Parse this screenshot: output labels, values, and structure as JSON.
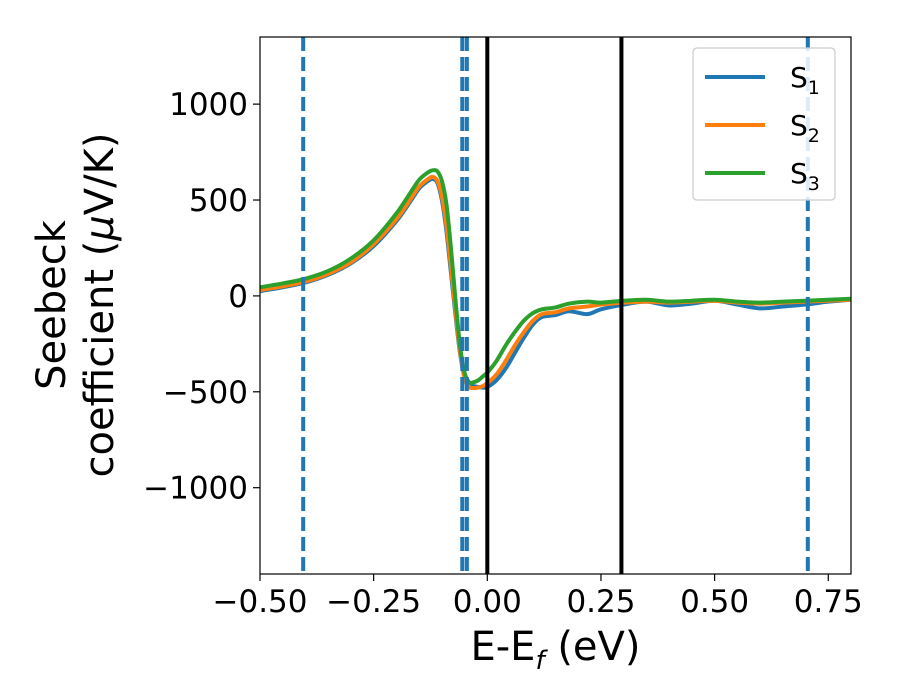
{
  "chart_data": {
    "type": "line",
    "title": "",
    "xlabel": {
      "main": "E-E",
      "sub": "f",
      "unit": " (eV)"
    },
    "ylabel": {
      "line1": "Seebeck",
      "line2_prefix": "coefficient  (",
      "line2_mu": "μ",
      "line2_suffix": "V/K)"
    },
    "xlim": [
      -0.5,
      0.8
    ],
    "ylim": [
      -1450,
      1350
    ],
    "xticks": [
      -0.5,
      -0.25,
      0.0,
      0.25,
      0.5,
      0.75
    ],
    "xtick_labels": [
      "−0.50",
      "−0.25",
      "0.00",
      "0.25",
      "0.50",
      "0.75"
    ],
    "yticks": [
      -1000,
      -500,
      0,
      500,
      1000
    ],
    "ytick_labels": [
      "−1000",
      "−500",
      "0",
      "500",
      "1000"
    ],
    "grid": false,
    "legend_position": "top-right",
    "vlines_dashed": {
      "color": "#1f77b4",
      "x": [
        -0.405,
        -0.055,
        -0.045,
        0.705
      ]
    },
    "vlines_solid": {
      "color": "#000000",
      "x": [
        0.0,
        0.295
      ]
    },
    "series": [
      {
        "name": "S",
        "sub": "1",
        "color": "#1f77b4",
        "x": [
          -0.5,
          -0.45,
          -0.4,
          -0.35,
          -0.3,
          -0.25,
          -0.2,
          -0.17,
          -0.15,
          -0.13,
          -0.12,
          -0.11,
          -0.1,
          -0.09,
          -0.08,
          -0.07,
          -0.06,
          -0.05,
          -0.04,
          -0.03,
          -0.02,
          -0.01,
          0.0,
          0.02,
          0.04,
          0.06,
          0.08,
          0.1,
          0.12,
          0.15,
          0.18,
          0.22,
          0.25,
          0.3,
          0.35,
          0.4,
          0.45,
          0.5,
          0.55,
          0.6,
          0.65,
          0.7,
          0.75,
          0.8
        ],
        "values": [
          25,
          45,
          70,
          110,
          170,
          260,
          390,
          490,
          560,
          600,
          610,
          590,
          500,
          340,
          120,
          -100,
          -300,
          -420,
          -460,
          -470,
          -475,
          -478,
          -475,
          -440,
          -380,
          -300,
          -220,
          -150,
          -110,
          -100,
          -80,
          -95,
          -70,
          -45,
          -30,
          -50,
          -40,
          -25,
          -45,
          -65,
          -55,
          -45,
          -30,
          -20
        ]
      },
      {
        "name": "S",
        "sub": "2",
        "color": "#ff7f0e",
        "x": [
          -0.5,
          -0.45,
          -0.4,
          -0.35,
          -0.3,
          -0.25,
          -0.2,
          -0.17,
          -0.15,
          -0.13,
          -0.12,
          -0.11,
          -0.1,
          -0.09,
          -0.08,
          -0.07,
          -0.06,
          -0.05,
          -0.04,
          -0.03,
          -0.02,
          -0.01,
          0.0,
          0.02,
          0.04,
          0.06,
          0.08,
          0.1,
          0.12,
          0.15,
          0.18,
          0.22,
          0.25,
          0.3,
          0.35,
          0.4,
          0.45,
          0.5,
          0.55,
          0.6,
          0.65,
          0.7,
          0.75,
          0.8
        ],
        "values": [
          30,
          50,
          75,
          115,
          175,
          270,
          400,
          500,
          570,
          610,
          620,
          600,
          520,
          370,
          150,
          -80,
          -290,
          -430,
          -475,
          -480,
          -478,
          -470,
          -455,
          -410,
          -340,
          -260,
          -190,
          -130,
          -95,
          -85,
          -65,
          -55,
          -45,
          -35,
          -30,
          -35,
          -30,
          -25,
          -35,
          -40,
          -35,
          -30,
          -25,
          -20
        ]
      },
      {
        "name": "S",
        "sub": "3",
        "color": "#2ca02c",
        "x": [
          -0.5,
          -0.45,
          -0.4,
          -0.35,
          -0.3,
          -0.25,
          -0.2,
          -0.17,
          -0.15,
          -0.13,
          -0.12,
          -0.11,
          -0.1,
          -0.09,
          -0.08,
          -0.07,
          -0.06,
          -0.05,
          -0.04,
          -0.03,
          -0.02,
          -0.01,
          0.0,
          0.02,
          0.04,
          0.06,
          0.08,
          0.1,
          0.12,
          0.15,
          0.18,
          0.22,
          0.25,
          0.3,
          0.35,
          0.4,
          0.45,
          0.5,
          0.55,
          0.6,
          0.65,
          0.7,
          0.75,
          0.8
        ],
        "values": [
          45,
          65,
          90,
          130,
          195,
          290,
          430,
          535,
          605,
          645,
          655,
          650,
          600,
          480,
          250,
          -20,
          -260,
          -400,
          -450,
          -450,
          -440,
          -420,
          -400,
          -340,
          -260,
          -190,
          -130,
          -90,
          -70,
          -60,
          -40,
          -30,
          -35,
          -25,
          -20,
          -30,
          -25,
          -20,
          -30,
          -35,
          -30,
          -25,
          -20,
          -15
        ]
      }
    ]
  }
}
